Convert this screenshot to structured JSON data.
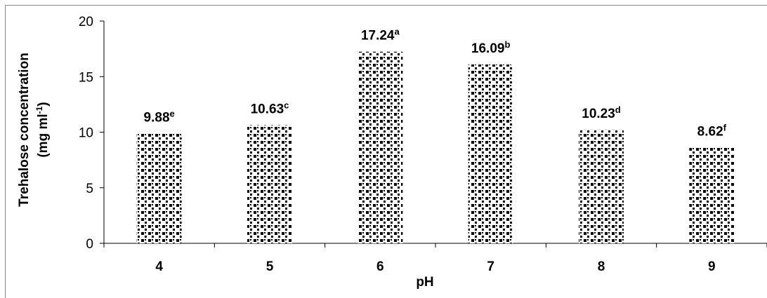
{
  "chart_data": {
    "type": "bar",
    "categories": [
      "4",
      "5",
      "6",
      "7",
      "8",
      "9"
    ],
    "values": [
      9.88,
      10.63,
      17.24,
      16.09,
      10.23,
      8.62
    ],
    "value_labels": [
      "9.88",
      "10.63",
      "17.24",
      "16.09",
      "10.23",
      "8.62"
    ],
    "significance_letters": [
      "e",
      "c",
      "a",
      "b",
      "d",
      "f"
    ],
    "xlabel": "pH",
    "ylabel_line1": "Trehalose concentration",
    "ylabel_line2_main": "(mg ml",
    "ylabel_line2_sup": "-1",
    "ylabel_line2_end": ")",
    "ylim": [
      0,
      20
    ],
    "yticks": [
      "0",
      "5",
      "10",
      "15",
      "20"
    ],
    "bar_fill": "dotted black pattern on white",
    "grid": false,
    "legend": "none"
  }
}
